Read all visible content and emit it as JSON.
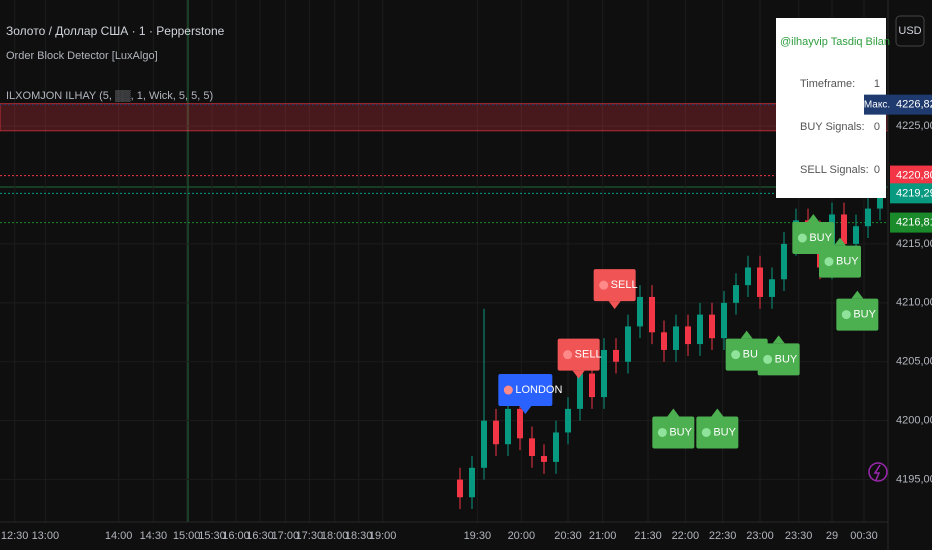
{
  "chart_data": {
    "type": "candlestick",
    "title": "Золото / Доллар США · 1 · Pepperstone",
    "indicators": [
      "Order Block Detector [LuxAlgo]",
      "ILXOMJON ILHAY (5, ▒▒, 1, Wick, 5, 5, 5)"
    ],
    "currency": "USD",
    "up_color": "#089981",
    "down_color": "#f23645",
    "grid": true,
    "x": [
      345,
      354,
      363,
      372,
      381,
      390,
      399,
      408,
      417,
      426,
      435,
      444,
      453,
      462,
      471,
      480,
      489,
      498,
      507,
      516,
      525,
      534,
      543,
      552,
      561,
      570,
      579,
      588,
      597,
      606,
      615,
      624,
      633,
      642,
      651,
      660
    ],
    "open": [
      4195,
      4193.5,
      4196,
      4200,
      4198,
      4201,
      4198.5,
      4197,
      4196.5,
      4199,
      4201,
      4204,
      4202,
      4206,
      4205,
      4208,
      4210.5,
      4207.5,
      4206,
      4208,
      4206.5,
      4209,
      4207,
      4210,
      4211.5,
      4213,
      4210.5,
      4212,
      4215,
      4217,
      4216,
      4213,
      4217.5,
      4215,
      4216.5,
      4218
    ],
    "high": [
      4196,
      4197,
      4209.5,
      4201,
      4202,
      4202,
      4199.5,
      4198,
      4200,
      4202,
      4205,
      4205,
      4207,
      4207,
      4209,
      4211.5,
      4211.5,
      4208.5,
      4209,
      4209,
      4210,
      4210,
      4211,
      4212.5,
      4214,
      4214,
      4213,
      4216,
      4218,
      4218,
      4217,
      4218.5,
      4218.5,
      4217.5,
      4219,
      4220.3
    ],
    "low": [
      4192.5,
      4192.5,
      4195,
      4197,
      4197,
      4197.5,
      4196,
      4195.5,
      4195.5,
      4198,
      4200,
      4201,
      4201,
      4204,
      4204,
      4207,
      4206.5,
      4205,
      4205,
      4205.5,
      4205.5,
      4206,
      4206,
      4209,
      4210.5,
      4209.5,
      4209.5,
      4211,
      4214,
      4215,
      4212,
      4212,
      4214,
      4214,
      4215.5,
      4217
    ],
    "close": [
      4193.5,
      4196,
      4200,
      4198,
      4201,
      4198.5,
      4197,
      4196.5,
      4199,
      4201,
      4204,
      4202,
      4206,
      4205,
      4208,
      4210.5,
      4207.5,
      4206,
      4208,
      4206.5,
      4209,
      4207,
      4210,
      4211.5,
      4213,
      4210.5,
      4212,
      4215,
      4217,
      4216,
      4213,
      4217.5,
      4215,
      4216.5,
      4218,
      4219.3
    ],
    "xlim": [
      0,
      666
    ],
    "ylim": [
      4191.4,
      4235.7
    ],
    "xticks": [
      {
        "value": 11,
        "label": "12:30"
      },
      {
        "value": 34,
        "label": "13:00"
      },
      {
        "value": 89,
        "label": "14:00"
      },
      {
        "value": 115,
        "label": "14:30"
      },
      {
        "value": 140,
        "label": "15:00"
      },
      {
        "value": 159,
        "label": "15:30"
      },
      {
        "value": 177,
        "label": "16:00"
      },
      {
        "value": 195,
        "label": "16:30"
      },
      {
        "value": 214,
        "label": "17:00"
      },
      {
        "value": 232,
        "label": "17:30"
      },
      {
        "value": 251,
        "label": "18:00"
      },
      {
        "value": 269,
        "label": "18:30"
      },
      {
        "value": 287,
        "label": "19:00"
      },
      {
        "value": 358,
        "label": "19:30"
      },
      {
        "value": 391,
        "label": "20:00"
      },
      {
        "value": 426,
        "label": "20:30"
      },
      {
        "value": 452,
        "label": "21:00"
      },
      {
        "value": 486,
        "label": "21:30"
      },
      {
        "value": 514,
        "label": "22:00"
      },
      {
        "value": 542,
        "label": "22:30"
      },
      {
        "value": 570,
        "label": "23:00"
      },
      {
        "value": 599,
        "label": "23:30"
      },
      {
        "value": 624,
        "label": "29"
      },
      {
        "value": 648,
        "label": "00:30"
      }
    ],
    "yticks": [
      {
        "value": 4195,
        "label": "4195,00"
      },
      {
        "value": 4200,
        "label": "4200,00"
      },
      {
        "value": 4205,
        "label": "4205,00"
      },
      {
        "value": 4210,
        "label": "4210,00"
      },
      {
        "value": 4215,
        "label": "4215,00"
      },
      {
        "value": 4225,
        "label": "4225,00"
      }
    ],
    "zones": [
      {
        "top": 4226.9,
        "bottom": 4224.6,
        "color": "#f23645"
      }
    ],
    "price_tags": [
      {
        "name": "Макс.",
        "value": 4226.82,
        "value_label": "4226,82",
        "color": "#1e3a6e"
      },
      {
        "value": 4220.8,
        "value_label": "4220,80",
        "color": "#f23645"
      },
      {
        "value": 4219.29,
        "value_label": "4219,29",
        "color": "#089981"
      },
      {
        "value": 4216.81,
        "value_label": "4216,81",
        "color": "#1b8a2a"
      }
    ],
    "signals": [
      {
        "x": 461,
        "y": 4211.5,
        "text": "SELL",
        "color": "#f05454",
        "dir": "down"
      },
      {
        "x": 434,
        "y": 4205.6,
        "text": "SELL",
        "color": "#f05454",
        "dir": "down"
      },
      {
        "x": 394,
        "y": 4202.6,
        "text": "LONDON",
        "color": "#2962ff",
        "dir": "down"
      },
      {
        "x": 505,
        "y": 4199,
        "text": "BUY",
        "color": "#4caf50",
        "dir": "up"
      },
      {
        "x": 538,
        "y": 4199,
        "text": "BUY",
        "color": "#4caf50",
        "dir": "up"
      },
      {
        "x": 560,
        "y": 4205.6,
        "text": "BUY",
        "color": "#4caf50",
        "dir": "up"
      },
      {
        "x": 584,
        "y": 4205.2,
        "text": "BUY",
        "color": "#4caf50",
        "dir": "up"
      },
      {
        "x": 610,
        "y": 4215.5,
        "text": "BUY",
        "color": "#4caf50",
        "dir": "up"
      },
      {
        "x": 630,
        "y": 4213.5,
        "text": "BUY",
        "color": "#4caf50",
        "dir": "up"
      },
      {
        "x": 643,
        "y": 4209,
        "text": "BUY",
        "color": "#4caf50",
        "dir": "up"
      }
    ],
    "info_table": {
      "title": "@ilhayvip Tasdiq Bilan",
      "rows": [
        [
          "Timeframe:",
          "1"
        ],
        [
          "BUY Signals:",
          "0"
        ],
        [
          "SELL Signals:",
          "0"
        ]
      ]
    }
  }
}
